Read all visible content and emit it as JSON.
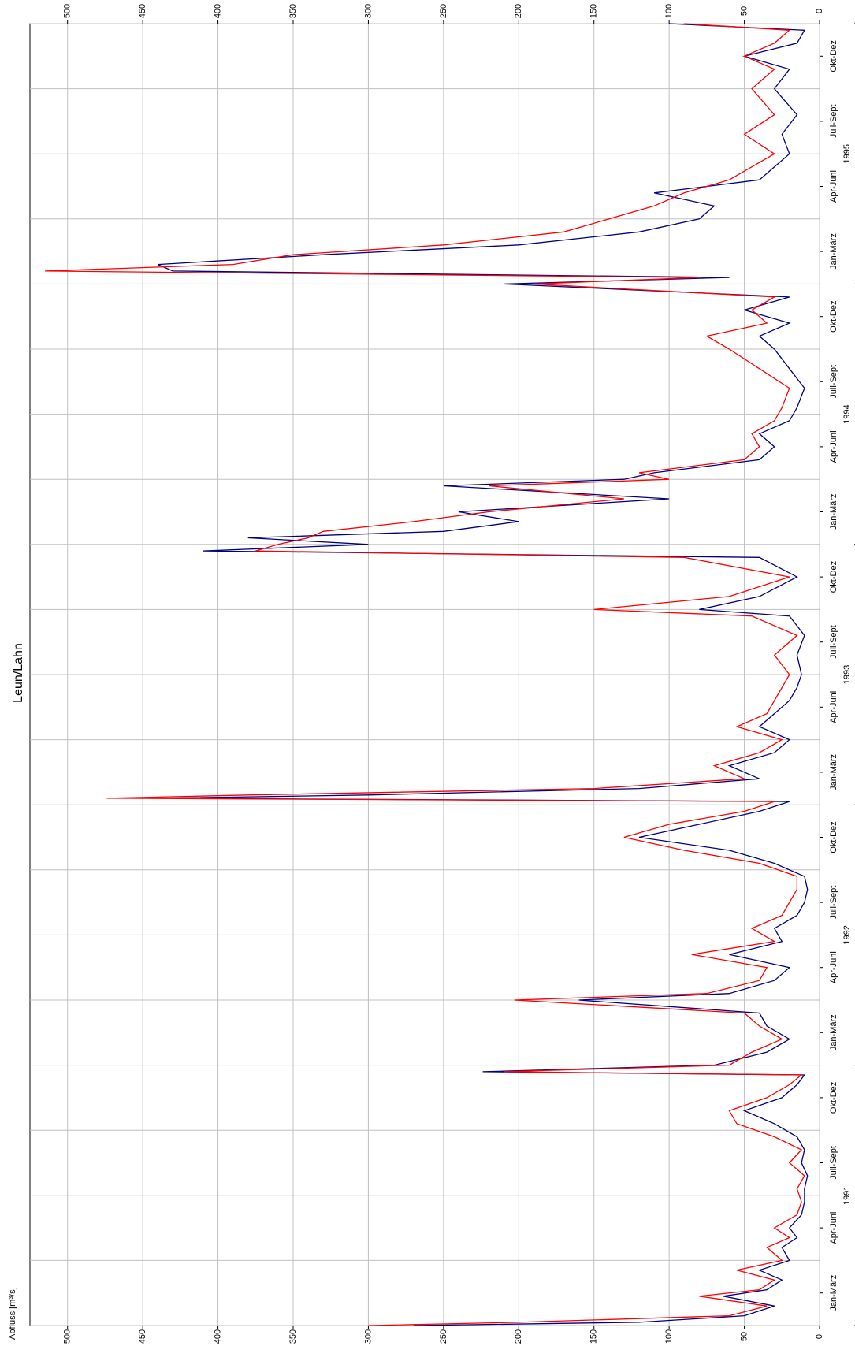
{
  "chart_data": {
    "type": "line",
    "title": "Leun/Lahn",
    "y_label": "Abfluss [m³/s]",
    "x": [
      0.0,
      0.05,
      0.15,
      0.3,
      0.45,
      0.55,
      0.7,
      0.85,
      1.0,
      1.2,
      1.35,
      1.5,
      1.7,
      1.9,
      2.1,
      2.3,
      2.5,
      2.7,
      2.9,
      3.1,
      3.3,
      3.5,
      3.7,
      3.85,
      3.9,
      4.0,
      4.2,
      4.4,
      4.6,
      4.8,
      5.0,
      5.1,
      5.3,
      5.5,
      5.7,
      5.9,
      6.1,
      6.3,
      6.5,
      6.7,
      6.9,
      7.1,
      7.3,
      7.5,
      7.7,
      7.9,
      8.05,
      8.1,
      8.15,
      8.25,
      8.4,
      8.6,
      8.8,
      9.0,
      9.2,
      9.4,
      9.6,
      9.8,
      10.0,
      10.3,
      10.6,
      10.9,
      11.0,
      11.2,
      11.5,
      11.8,
      11.9,
      12.0,
      12.1,
      12.2,
      12.35,
      12.5,
      12.7,
      12.9,
      13.0,
      13.1,
      13.3,
      13.5,
      13.7,
      13.9,
      14.1,
      14.4,
      14.7,
      15.0,
      15.2,
      15.4,
      15.6,
      15.8,
      16.0,
      16.1,
      16.2,
      16.3,
      16.45,
      16.6,
      16.8,
      17.0,
      17.2,
      17.4,
      17.6,
      17.8,
      18.0,
      18.3,
      18.6,
      19.0,
      19.3,
      19.5,
      19.7,
      19.9,
      20.0
    ],
    "series": [
      {
        "color": "#000080",
        "values": [
          270,
          120,
          50,
          30,
          64,
          35,
          25,
          40,
          20,
          25,
          15,
          20,
          12,
          10,
          10,
          8,
          12,
          10,
          15,
          30,
          50,
          25,
          15,
          10,
          224,
          70,
          35,
          20,
          35,
          40,
          160,
          60,
          30,
          20,
          60,
          25,
          30,
          15,
          10,
          8,
          10,
          30,
          60,
          120,
          80,
          40,
          20,
          440,
          300,
          120,
          40,
          60,
          30,
          20,
          40,
          30,
          20,
          15,
          12,
          15,
          10,
          20,
          80,
          40,
          15,
          40,
          410,
          300,
          380,
          250,
          200,
          240,
          100,
          250,
          130,
          110,
          40,
          30,
          40,
          20,
          15,
          10,
          20,
          30,
          40,
          20,
          50,
          20,
          210,
          60,
          430,
          440,
          330,
          200,
          120,
          80,
          70,
          110,
          40,
          30,
          20,
          25,
          15,
          30,
          20,
          50,
          15,
          10,
          100
        ]
      },
      {
        "color": "#ff0000",
        "values": [
          300,
          200,
          60,
          35,
          80,
          40,
          30,
          55,
          25,
          35,
          20,
          30,
          15,
          12,
          15,
          10,
          20,
          12,
          30,
          55,
          60,
          35,
          20,
          12,
          210,
          60,
          45,
          25,
          40,
          50,
          203,
          75,
          40,
          35,
          85,
          30,
          45,
          25,
          20,
          15,
          15,
          40,
          90,
          130,
          100,
          50,
          30,
          474,
          380,
          150,
          50,
          70,
          40,
          25,
          55,
          35,
          30,
          25,
          20,
          30,
          15,
          45,
          150,
          60,
          20,
          90,
          375,
          360,
          340,
          330,
          270,
          220,
          130,
          220,
          100,
          120,
          50,
          40,
          45,
          30,
          25,
          20,
          40,
          60,
          75,
          35,
          45,
          30,
          190,
          80,
          515,
          390,
          350,
          250,
          170,
          140,
          110,
          90,
          60,
          45,
          30,
          50,
          30,
          45,
          30,
          50,
          30,
          20,
          90
        ]
      }
    ],
    "xlim": [
      0,
      20
    ],
    "xticks": [
      {
        "value": 0.5,
        "label": "Jan-März"
      },
      {
        "value": 1.5,
        "label": "Apr-Juni"
      },
      {
        "value": 2.5,
        "label": "Juli-Sept"
      },
      {
        "value": 3.5,
        "label": "Okt-Dez"
      },
      {
        "value": 4.5,
        "label": "Jan-März"
      },
      {
        "value": 5.5,
        "label": "Apr-Juni"
      },
      {
        "value": 6.5,
        "label": "Juli-Sept"
      },
      {
        "value": 7.5,
        "label": "Okt-Dez"
      },
      {
        "value": 8.5,
        "label": "Jan-März"
      },
      {
        "value": 9.5,
        "label": "Apr-Juni"
      },
      {
        "value": 10.5,
        "label": "Juli-Sept"
      },
      {
        "value": 11.5,
        "label": "Okt-Dez"
      },
      {
        "value": 12.5,
        "label": "Jan-März"
      },
      {
        "value": 13.5,
        "label": "Apr-Juni"
      },
      {
        "value": 14.5,
        "label": "Juli-Sept"
      },
      {
        "value": 15.5,
        "label": "Okt-Dez"
      },
      {
        "value": 16.5,
        "label": "Jan-März"
      },
      {
        "value": 17.5,
        "label": "Apr-Juni"
      },
      {
        "value": 18.5,
        "label": "Juli-Sept"
      },
      {
        "value": 19.5,
        "label": "Okt-Dez"
      }
    ],
    "year_labels": [
      {
        "value": 2,
        "label": "1991"
      },
      {
        "value": 6,
        "label": "1992"
      },
      {
        "value": 10,
        "label": "1993"
      },
      {
        "value": 14,
        "label": "1994"
      },
      {
        "value": 18,
        "label": "1995"
      }
    ],
    "ylim": [
      0,
      525
    ],
    "yticks": [
      0,
      50,
      100,
      150,
      200,
      250,
      300,
      350,
      400,
      450,
      500
    ],
    "grid": true
  }
}
